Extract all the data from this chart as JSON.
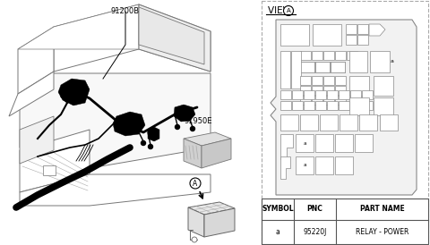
{
  "table_headers": [
    "SYMBOL",
    "PNC",
    "PART NAME"
  ],
  "table_row": [
    "a",
    "95220J",
    "RELAY - POWER"
  ],
  "label_91200B": "91200B",
  "label_91950E": "91950E",
  "label_A": "A",
  "line_color": "#888888",
  "bg_color": "#ffffff"
}
